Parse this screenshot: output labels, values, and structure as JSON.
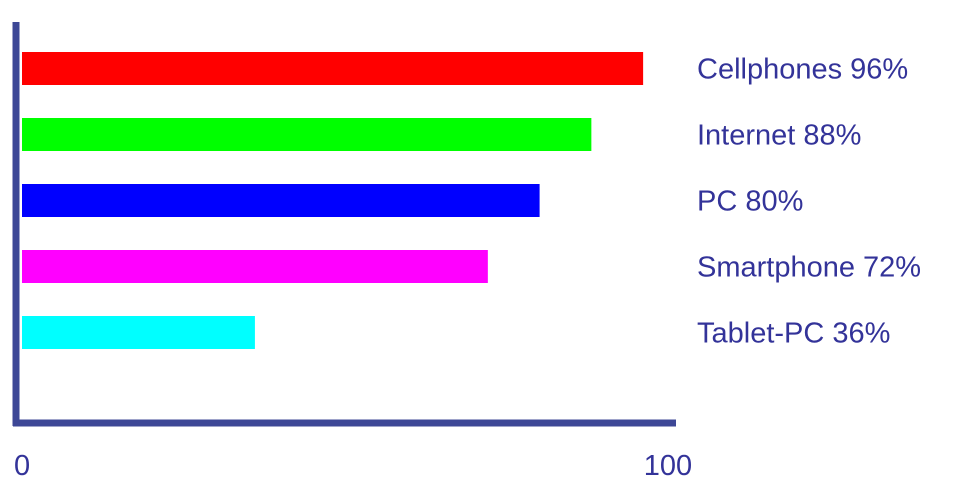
{
  "chart_data": {
    "type": "bar",
    "orientation": "horizontal",
    "categories": [
      "Cellphones",
      "Internet",
      "PC",
      "Smartphone",
      "Tablet-PC"
    ],
    "values": [
      96,
      88,
      80,
      72,
      36
    ],
    "labels": [
      "Cellphones 96%",
      "Internet 88%",
      "PC 80%",
      "Smartphone 72%",
      "Tablet-PC 36%"
    ],
    "colors": [
      "#ff0000",
      "#00ff00",
      "#0000ff",
      "#ff00ff",
      "#00ffff"
    ],
    "xlim": [
      0,
      100
    ],
    "xticks": [
      "0",
      "100"
    ],
    "axis_color": "#3d4796",
    "label_color": "#333399",
    "grid": false,
    "legend": "right"
  }
}
